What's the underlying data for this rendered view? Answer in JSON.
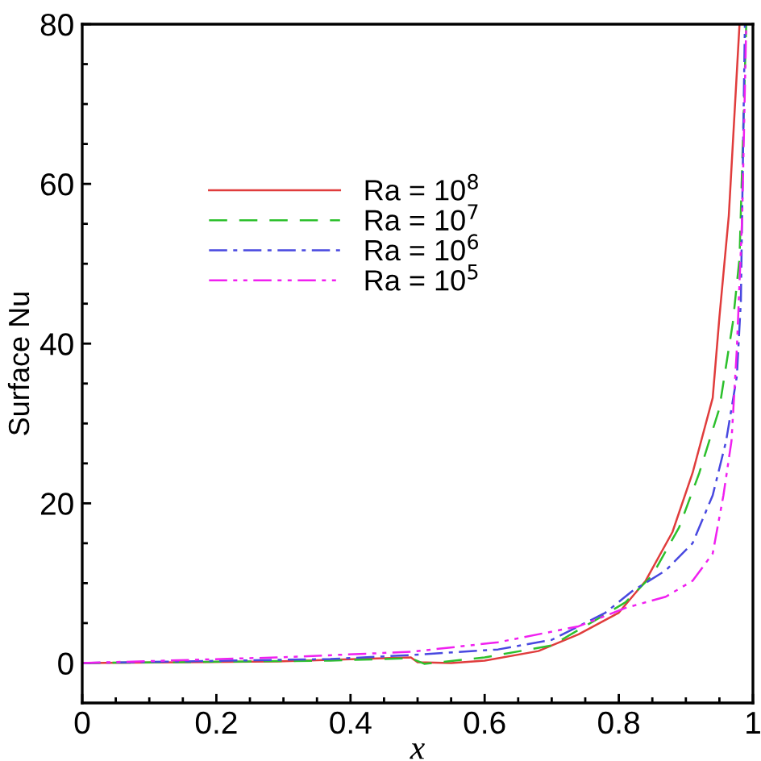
{
  "chart_data": {
    "type": "line",
    "xlabel": "x",
    "ylabel": "Surface Nu",
    "xlim": [
      0,
      1
    ],
    "ylim": [
      -5,
      80
    ],
    "xticks": [
      0,
      {
        "value": 0.05,
        "label": null
      },
      {
        "value": 0.1,
        "label": null
      },
      {
        "value": 0.15,
        "label": null
      },
      0.2,
      {
        "value": 0.25,
        "label": null
      },
      {
        "value": 0.3,
        "label": null
      },
      {
        "value": 0.35,
        "label": null
      },
      0.4,
      {
        "value": 0.45,
        "label": null
      },
      {
        "value": 0.5,
        "label": null
      },
      {
        "value": 0.55,
        "label": null
      },
      0.6,
      {
        "value": 0.65,
        "label": null
      },
      {
        "value": 0.7,
        "label": null
      },
      {
        "value": 0.75,
        "label": null
      },
      0.8,
      {
        "value": 0.85,
        "label": null
      },
      {
        "value": 0.9,
        "label": null
      },
      {
        "value": 0.95,
        "label": null
      },
      1
    ],
    "yticks": [
      0,
      {
        "value": 5,
        "label": null
      },
      {
        "value": 10,
        "label": null
      },
      {
        "value": 15,
        "label": null
      },
      20,
      {
        "value": 25,
        "label": null
      },
      {
        "value": 30,
        "label": null
      },
      {
        "value": 35,
        "label": null
      },
      40,
      {
        "value": 45,
        "label": null
      },
      {
        "value": 50,
        "label": null
      },
      {
        "value": 55,
        "label": null
      },
      60,
      {
        "value": 65,
        "label": null
      },
      {
        "value": 70,
        "label": null
      },
      {
        "value": 75,
        "label": null
      },
      80
    ],
    "grid": false,
    "legend": "top left",
    "marker": "none",
    "series": [
      {
        "name": "Ra = 10$^{8}$",
        "color": "#e03c3c",
        "line_style": "solid",
        "x": [
          0,
          0.29,
          0.49,
          0.5,
          0.55,
          0.6,
          0.68,
          0.74,
          0.8,
          0.84,
          0.88,
          0.91,
          0.94,
          0.95,
          0.964,
          0.98
        ],
        "values": [
          0,
          0.2,
          0.7,
          0.1,
          0,
          0.3,
          1.5,
          3.6,
          6.3,
          10.3,
          16.4,
          23.8,
          33.2,
          43.3,
          56,
          80
        ]
      },
      {
        "name": "Ra = 10$^{7}$",
        "color": "#2cc02c",
        "line_style": "dashed",
        "x": [
          0,
          0.37,
          0.49,
          0.51,
          0.6,
          0.7,
          0.77,
          0.81,
          0.85,
          0.89,
          0.92,
          0.95,
          0.97,
          0.98,
          0.99
        ],
        "values": [
          0,
          0.3,
          0.6,
          -0.1,
          0.7,
          2.2,
          5.6,
          7.6,
          11,
          17,
          23.8,
          31.9,
          42.6,
          50.7,
          80
        ]
      },
      {
        "name": "Ra = 10$^{6}$",
        "color": "#4848e0",
        "line_style": "dashdot",
        "x": [
          0,
          0.37,
          0.49,
          0.62,
          0.7,
          0.78,
          0.82,
          0.87,
          0.91,
          0.94,
          0.96,
          0.976,
          0.982,
          0.988
        ],
        "values": [
          0,
          0.5,
          1.0,
          1.7,
          2.9,
          6.3,
          9.0,
          11.6,
          15,
          21,
          27.8,
          35.9,
          45.3,
          80
        ]
      },
      {
        "name": "Ra = 10$^{5}$",
        "color": "#f020f0",
        "line_style": "dashdotdot",
        "x": [
          0,
          0.29,
          0.49,
          0.62,
          0.74,
          0.81,
          0.87,
          0.91,
          0.94,
          0.956,
          0.968,
          0.976,
          0.984,
          0.99
        ],
        "values": [
          0,
          0.7,
          1.4,
          2.6,
          4.6,
          6.9,
          8.3,
          10.3,
          13.7,
          21,
          27.8,
          39.3,
          56,
          80
        ]
      }
    ]
  }
}
